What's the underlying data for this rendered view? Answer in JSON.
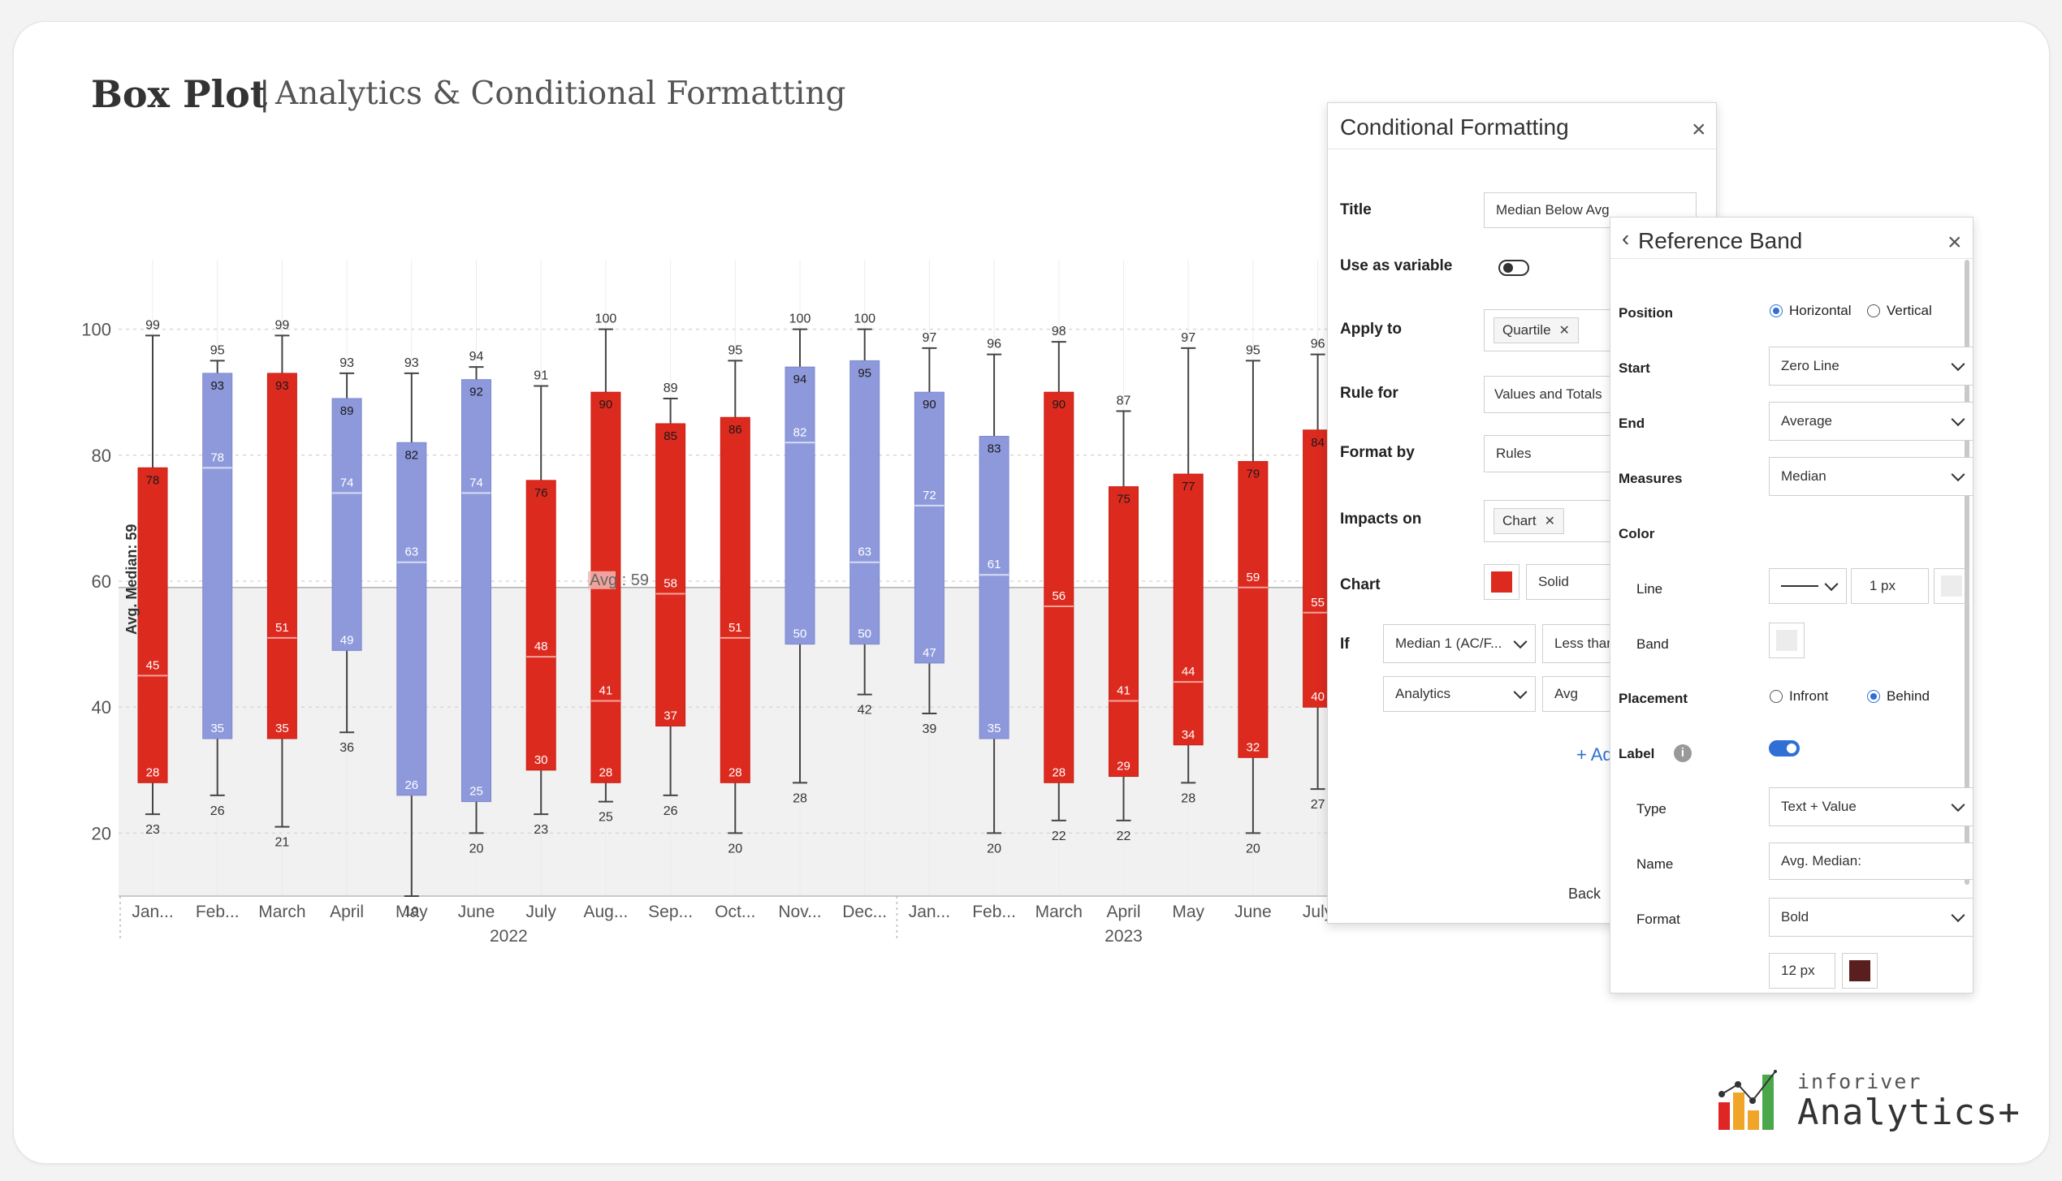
{
  "header": {
    "title": "Box Plot",
    "separator": "|",
    "subtitle": "Analytics & Conditional Formatting"
  },
  "colors": {
    "below_avg": "#dd2a1e",
    "above_avg": "#8e99db",
    "median_line_red": "#f5a39b",
    "median_line_blue": "#d8ddf5",
    "band": "#f1f1f1",
    "whisker": "#444444"
  },
  "chart_data": {
    "type": "box",
    "ylim": [
      10,
      105
    ],
    "yticks": [
      20,
      40,
      60,
      80,
      100
    ],
    "reference_band": {
      "from": 10,
      "to": 59,
      "label": "Avg. Median: 59"
    },
    "avg_line": {
      "value": 59,
      "label": "Avg : 59"
    },
    "series": [
      {
        "cat": "Jan...",
        "min": 23,
        "q1": 28,
        "median": 45,
        "q3": 78,
        "max": 99,
        "color": "red"
      },
      {
        "cat": "Feb...",
        "min": 26,
        "q1": 35,
        "median": 78,
        "q3": 93,
        "max": 95,
        "color": "blue"
      },
      {
        "cat": "March",
        "min": 21,
        "q1": 35,
        "median": 51,
        "q3": 93,
        "max": 99,
        "color": "red"
      },
      {
        "cat": "April",
        "min": 36,
        "q1": 49,
        "median": 74,
        "q3": 89,
        "max": 93,
        "color": "blue"
      },
      {
        "cat": "May",
        "min": 10,
        "q1": 26,
        "median": 63,
        "q3": 82,
        "max": 93,
        "color": "blue"
      },
      {
        "cat": "June",
        "min": 20,
        "q1": 25,
        "median": 74,
        "q3": 92,
        "max": 94,
        "color": "blue"
      },
      {
        "cat": "July",
        "min": 23,
        "q1": 30,
        "median": 48,
        "q3": 76,
        "max": 91,
        "color": "red"
      },
      {
        "cat": "Aug...",
        "min": 25,
        "q1": 28,
        "median": 41,
        "q3": 90,
        "max": 100,
        "color": "red"
      },
      {
        "cat": "Sep...",
        "min": 26,
        "q1": 37,
        "median": 58,
        "q3": 85,
        "max": 89,
        "color": "red"
      },
      {
        "cat": "Oct...",
        "min": 20,
        "q1": 28,
        "median": 51,
        "q3": 86,
        "max": 95,
        "color": "red"
      },
      {
        "cat": "Nov...",
        "min": 28,
        "q1": 50,
        "median": 82,
        "q3": 94,
        "max": 100,
        "color": "blue"
      },
      {
        "cat": "Dec...",
        "min": 42,
        "q1": 50,
        "median": 63,
        "q3": 95,
        "max": 100,
        "color": "blue"
      },
      {
        "cat": "Jan...",
        "min": 39,
        "q1": 47,
        "median": 72,
        "q3": 90,
        "max": 97,
        "color": "blue"
      },
      {
        "cat": "Feb...",
        "min": 20,
        "q1": 35,
        "median": 61,
        "q3": 83,
        "max": 96,
        "color": "blue"
      },
      {
        "cat": "March",
        "min": 22,
        "q1": 28,
        "median": 56,
        "q3": 90,
        "max": 98,
        "color": "red"
      },
      {
        "cat": "April",
        "min": 22,
        "q1": 29,
        "median": 41,
        "q3": 75,
        "max": 87,
        "color": "red"
      },
      {
        "cat": "May",
        "min": 28,
        "q1": 34,
        "median": 44,
        "q3": 77,
        "max": 97,
        "color": "red"
      },
      {
        "cat": "June",
        "min": 20,
        "q1": 32,
        "median": 59,
        "q3": 79,
        "max": 95,
        "color": "red"
      },
      {
        "cat": "July",
        "min": 27,
        "q1": 40,
        "median": 55,
        "q3": 84,
        "max": 96,
        "color": "red"
      }
    ],
    "year_groups": [
      {
        "label": "2022",
        "from": 0,
        "to": 11
      },
      {
        "label": "2023",
        "from": 12,
        "to": 18
      }
    ]
  },
  "conditional_formatting": {
    "title": "Conditional Formatting",
    "title_label": "Title",
    "title_value": "Median Below Avg",
    "use_as_variable_label": "Use as variable",
    "apply_to_label": "Apply to",
    "apply_to_chip": "Quartile",
    "rule_for_label": "Rule for",
    "rule_for_value": "Values and Totals",
    "format_by_label": "Format by",
    "format_by_value": "Rules",
    "impacts_on_label": "Impacts on",
    "impacts_on_chip": "Chart",
    "chart_label": "Chart",
    "chart_style": "Solid",
    "if_label": "If",
    "if_measure": "Median 1 (AC/F...",
    "if_operator": "Less than",
    "if_source": "Analytics",
    "if_value": "Avg",
    "add_label": "+ Add",
    "back_label": "Back"
  },
  "reference_band": {
    "title": "Reference Band",
    "position_label": "Position",
    "horizontal": "Horizontal",
    "vertical": "Vertical",
    "start_label": "Start",
    "start_value": "Zero Line",
    "end_label": "End",
    "end_value": "Average",
    "measures_label": "Measures",
    "measures_value": "Median",
    "color_label": "Color",
    "line_label": "Line",
    "line_width": "1 px",
    "band_label": "Band",
    "placement_label": "Placement",
    "infront": "Infront",
    "behind": "Behind",
    "label_label": "Label",
    "type_label": "Type",
    "type_value": "Text + Value",
    "name_label": "Name",
    "name_value": "Avg. Median:",
    "format_label": "Format",
    "format_value": "Bold",
    "font_size": "12 px"
  },
  "brand": {
    "line1": "inforiver",
    "line2": "Analytics+"
  }
}
